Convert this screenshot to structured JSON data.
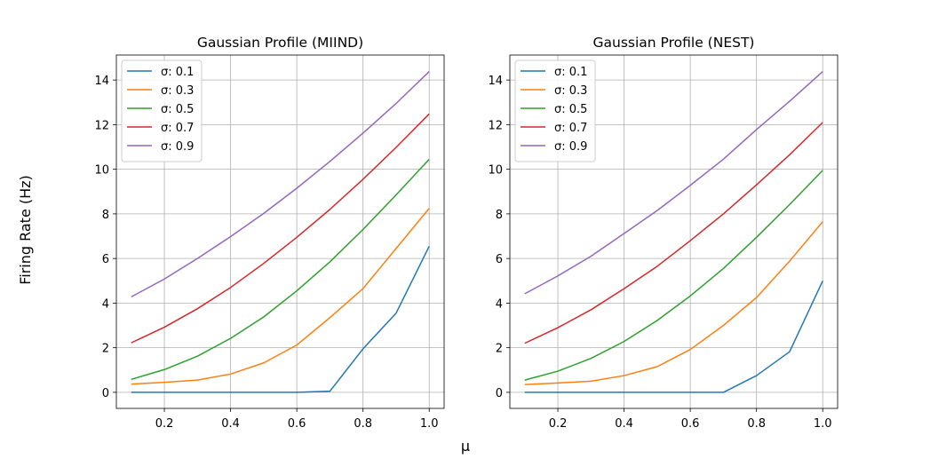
{
  "figure": {
    "ylabel": "Firing Rate (Hz)",
    "xlabel": "μ"
  },
  "chart_data": [
    {
      "type": "line",
      "title": "Gaussian Profile (MIIND)",
      "xlim": [
        0.055,
        1.045
      ],
      "ylim": [
        -0.72,
        15.12
      ],
      "xticks": [
        0.2,
        0.4,
        0.6,
        0.8,
        1.0
      ],
      "xtick_labels": [
        "0.2",
        "0.4",
        "0.6",
        "0.8",
        "1.0"
      ],
      "yticks": [
        0,
        2,
        4,
        6,
        8,
        10,
        12,
        14
      ],
      "ytick_labels": [
        "0",
        "2",
        "4",
        "6",
        "8",
        "10",
        "12",
        "14"
      ],
      "grid": true,
      "legend_position": "upper-left",
      "x": [
        0.1,
        0.2,
        0.3,
        0.4,
        0.5,
        0.6,
        0.7,
        0.8,
        0.9,
        1.0
      ],
      "series": [
        {
          "name": "σ: 0.1",
          "color": "#1f77b4",
          "values": [
            0.0,
            0.0,
            0.0,
            0.0,
            0.0,
            0.0,
            0.05,
            1.95,
            3.55,
            6.55
          ]
        },
        {
          "name": "σ: 0.3",
          "color": "#ff7f0e",
          "values": [
            0.37,
            0.45,
            0.55,
            0.82,
            1.32,
            2.12,
            3.35,
            4.65,
            6.45,
            8.25
          ]
        },
        {
          "name": "σ: 0.5",
          "color": "#2ca02c",
          "values": [
            0.58,
            1.02,
            1.62,
            2.42,
            3.38,
            4.55,
            5.85,
            7.3,
            8.85,
            10.45
          ]
        },
        {
          "name": "σ: 0.7",
          "color": "#d62728",
          "values": [
            2.22,
            2.92,
            3.75,
            4.7,
            5.78,
            6.95,
            8.2,
            9.55,
            10.98,
            12.48
          ]
        },
        {
          "name": "σ: 0.9",
          "color": "#9467bd",
          "values": [
            4.28,
            5.08,
            6.0,
            6.98,
            8.02,
            9.15,
            10.35,
            11.62,
            12.95,
            14.38
          ]
        }
      ]
    },
    {
      "type": "line",
      "title": "Gaussian Profile (NEST)",
      "xlim": [
        0.055,
        1.045
      ],
      "ylim": [
        -0.72,
        15.12
      ],
      "xticks": [
        0.2,
        0.4,
        0.6,
        0.8,
        1.0
      ],
      "xtick_labels": [
        "0.2",
        "0.4",
        "0.6",
        "0.8",
        "1.0"
      ],
      "yticks": [
        0,
        2,
        4,
        6,
        8,
        10,
        12,
        14
      ],
      "ytick_labels": [
        "0",
        "2",
        "4",
        "6",
        "8",
        "10",
        "12",
        "14"
      ],
      "grid": true,
      "legend_position": "upper-left",
      "x": [
        0.1,
        0.2,
        0.3,
        0.4,
        0.5,
        0.6,
        0.7,
        0.8,
        0.9,
        1.0
      ],
      "series": [
        {
          "name": "σ: 0.1",
          "color": "#1f77b4",
          "values": [
            0.0,
            0.0,
            0.0,
            0.0,
            0.0,
            0.0,
            0.0,
            0.75,
            1.82,
            5.0
          ]
        },
        {
          "name": "σ: 0.3",
          "color": "#ff7f0e",
          "values": [
            0.35,
            0.42,
            0.5,
            0.75,
            1.15,
            1.92,
            3.0,
            4.25,
            5.88,
            7.65
          ]
        },
        {
          "name": "σ: 0.5",
          "color": "#2ca02c",
          "values": [
            0.55,
            0.95,
            1.52,
            2.28,
            3.22,
            4.32,
            5.55,
            6.95,
            8.42,
            9.95
          ]
        },
        {
          "name": "σ: 0.7",
          "color": "#d62728",
          "values": [
            2.2,
            2.9,
            3.7,
            4.65,
            5.65,
            6.8,
            8.0,
            9.3,
            10.65,
            12.1
          ]
        },
        {
          "name": "σ: 0.9",
          "color": "#9467bd",
          "values": [
            4.42,
            5.22,
            6.1,
            7.12,
            8.15,
            9.28,
            10.45,
            11.78,
            13.05,
            14.38
          ]
        }
      ]
    }
  ]
}
